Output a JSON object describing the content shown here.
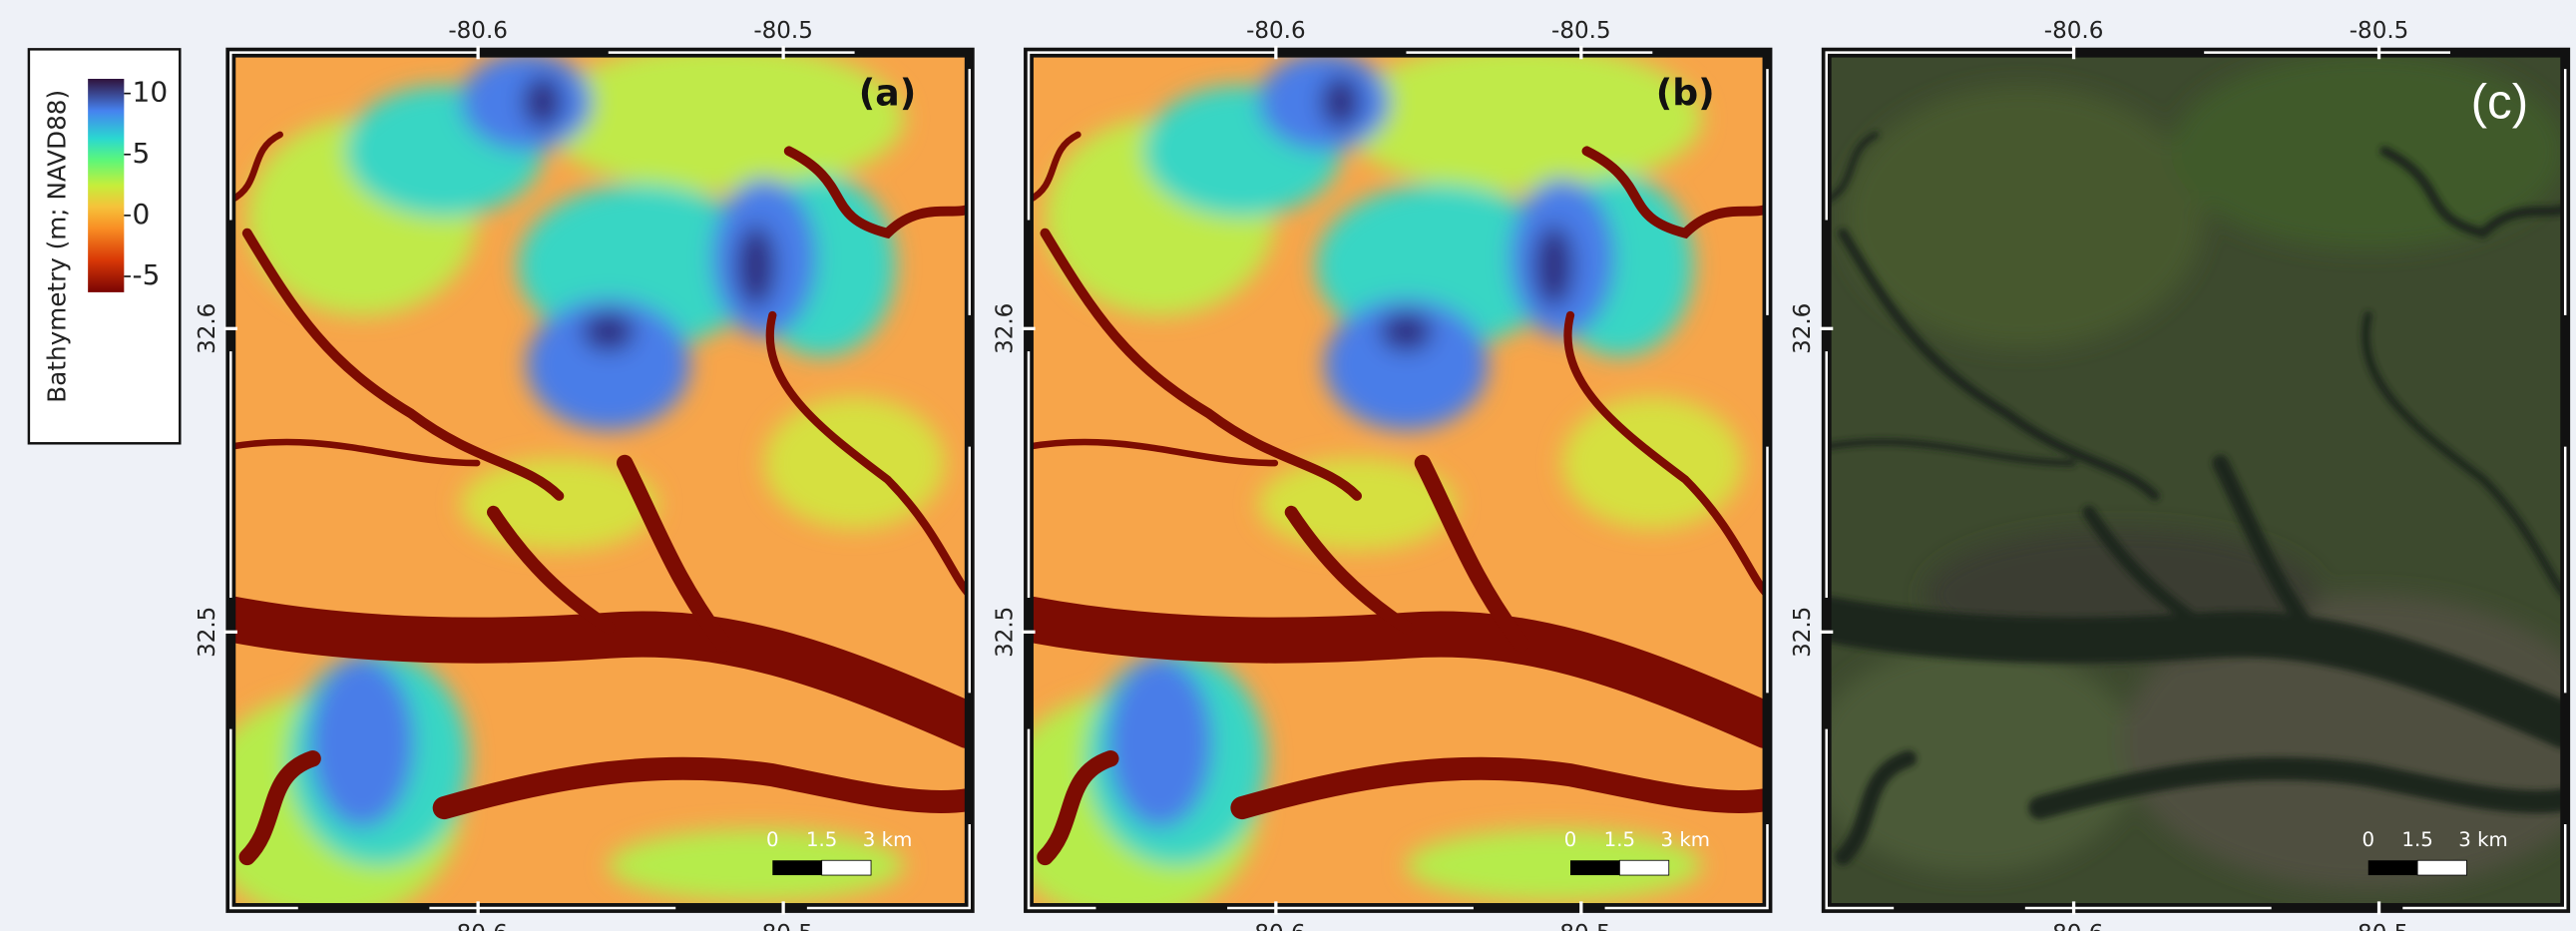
{
  "colorbar": {
    "label": "Bathymetry (m; NAVD88)",
    "lim": [
      -6.3,
      11.2
    ],
    "ticks": [
      10,
      5,
      0,
      -5
    ]
  },
  "lon_lim": [
    -80.681,
    -80.439
  ],
  "lon_ticks": [
    -80.6,
    -80.5
  ],
  "lat_lim": [
    32.409,
    32.691
  ],
  "lat_ticks": [
    32.6,
    32.5
  ],
  "panels": [
    {
      "label": "(a)"
    },
    {
      "label": "(b)"
    },
    {
      "label": "(c)"
    }
  ],
  "scale_bar": {
    "labels": [
      "0",
      "1.5",
      "3 km"
    ]
  }
}
